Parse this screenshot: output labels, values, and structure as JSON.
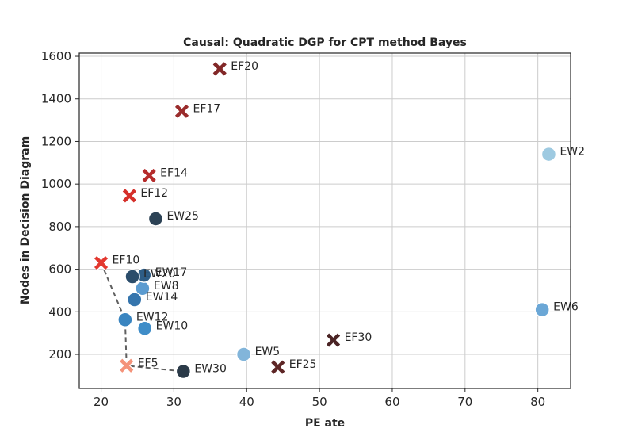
{
  "chart_data": {
    "type": "scatter",
    "title": "Causal: Quadratic DGP for CPT method Bayes",
    "xlabel": "PE ate",
    "ylabel": "Nodes in Decision Diagram",
    "xlim": [
      17,
      84.5
    ],
    "ylim": [
      40,
      1615
    ],
    "xticks": [
      20,
      30,
      40,
      50,
      60,
      70,
      80
    ],
    "yticks": [
      200,
      400,
      600,
      800,
      1000,
      1200,
      1400,
      1600
    ],
    "grid": true,
    "points": [
      {
        "label": "EW2",
        "x": 81.5,
        "y": 1140,
        "marker": "circle",
        "color": "#9ecae1"
      },
      {
        "label": "EW5",
        "x": 39.6,
        "y": 200,
        "marker": "circle",
        "color": "#82b5da"
      },
      {
        "label": "EW6",
        "x": 80.6,
        "y": 410,
        "marker": "circle",
        "color": "#6ba7d6"
      },
      {
        "label": "EW8",
        "x": 25.7,
        "y": 510,
        "marker": "circle",
        "color": "#5b9bd0"
      },
      {
        "label": "EW10",
        "x": 26.0,
        "y": 322,
        "marker": "circle",
        "color": "#3f8dc8"
      },
      {
        "label": "EW12",
        "x": 23.3,
        "y": 363,
        "marker": "circle",
        "color": "#3a85c0"
      },
      {
        "label": "EW14",
        "x": 24.6,
        "y": 457,
        "marker": "circle",
        "color": "#3575ad"
      },
      {
        "label": "EW17",
        "x": 25.9,
        "y": 572,
        "marker": "circle",
        "color": "#2e5d86"
      },
      {
        "label": "EW20",
        "x": 24.3,
        "y": 565,
        "marker": "circle",
        "color": "#2b4d6b"
      },
      {
        "label": "EW25",
        "x": 27.5,
        "y": 837,
        "marker": "circle",
        "color": "#2c4255"
      },
      {
        "label": "EW30",
        "x": 31.3,
        "y": 120,
        "marker": "circle",
        "color": "#2b3a48"
      },
      {
        "label": "EF5",
        "x": 23.5,
        "y": 147,
        "marker": "x",
        "color": "#f4937a"
      },
      {
        "label": "EF10",
        "x": 20.0,
        "y": 630,
        "marker": "x",
        "color": "#e3382f"
      },
      {
        "label": "EF12",
        "x": 23.9,
        "y": 945,
        "marker": "x",
        "color": "#d52f2a"
      },
      {
        "label": "EF14",
        "x": 26.6,
        "y": 1040,
        "marker": "x",
        "color": "#b52b2b"
      },
      {
        "label": "EF17",
        "x": 31.1,
        "y": 1342,
        "marker": "x",
        "color": "#9a2c2c"
      },
      {
        "label": "EF20",
        "x": 36.3,
        "y": 1541,
        "marker": "x",
        "color": "#822828"
      },
      {
        "label": "EF25",
        "x": 44.3,
        "y": 140,
        "marker": "x",
        "color": "#5e2626"
      },
      {
        "label": "EF30",
        "x": 51.9,
        "y": 267,
        "marker": "x",
        "color": "#4a2324"
      }
    ],
    "dashed_path": [
      {
        "x": 20.0,
        "y": 630
      },
      {
        "x": 23.3,
        "y": 363
      },
      {
        "x": 23.5,
        "y": 147
      },
      {
        "x": 31.3,
        "y": 120
      }
    ]
  }
}
